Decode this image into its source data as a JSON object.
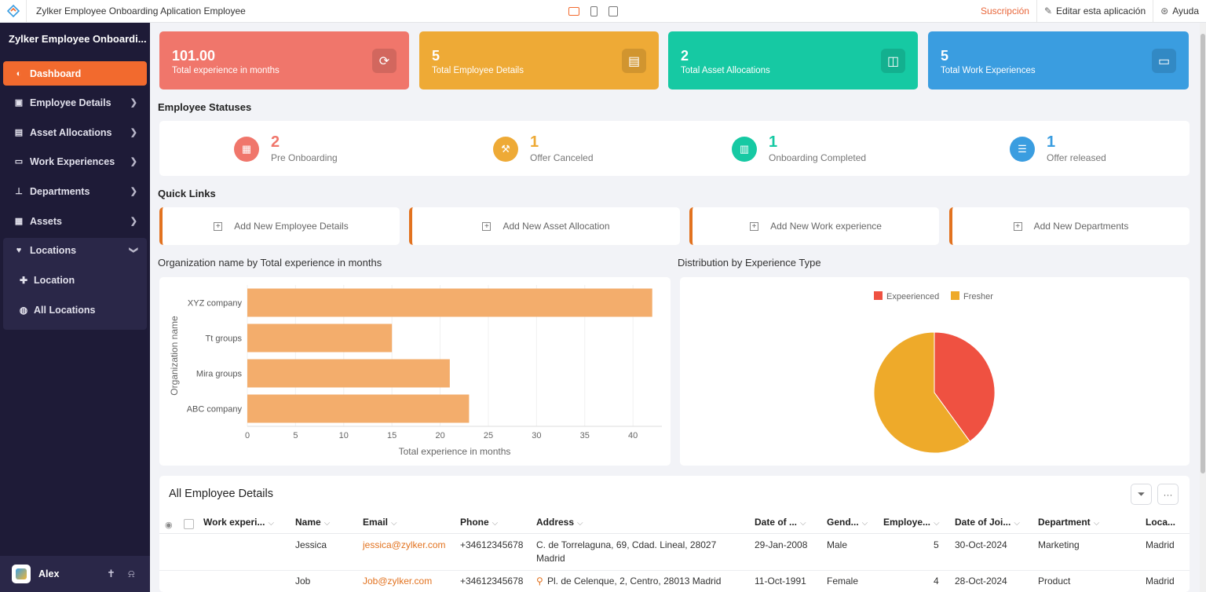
{
  "topbar": {
    "title": "Zylker Employee Onboarding Aplication Employee",
    "subscription": "Suscripción",
    "edit_app": "Editar esta aplicación",
    "help": "Ayuda"
  },
  "sidebar": {
    "title": "Zylker Employee Onboardi...",
    "items": [
      {
        "label": "Dashboard",
        "icon": "dashboard-icon"
      },
      {
        "label": "Employee Details",
        "icon": "employee-icon"
      },
      {
        "label": "Asset Allocations",
        "icon": "asset-allocation-icon"
      },
      {
        "label": "Work Experiences",
        "icon": "laptop-icon"
      },
      {
        "label": "Departments",
        "icon": "org-chart-icon"
      },
      {
        "label": "Assets",
        "icon": "assets-icon"
      },
      {
        "label": "Locations",
        "icon": "location-icon"
      }
    ],
    "subitems": [
      {
        "label": "Location",
        "icon": "plus-icon"
      },
      {
        "label": "All Locations",
        "icon": "globe-icon"
      }
    ],
    "user": "Alex",
    "accent": "#f26a2e"
  },
  "kpis": [
    {
      "value": "101.00",
      "label": "Total experience in months",
      "color": "#f0766b",
      "icon": "refresh-icon"
    },
    {
      "value": "5",
      "label": "Total Employee Details",
      "color": "#eeaa36",
      "icon": "id-card-icon"
    },
    {
      "value": "2",
      "label": "Total Asset Allocations",
      "color": "#16c9a3",
      "icon": "chart-board-icon"
    },
    {
      "value": "5",
      "label": "Total Work Experiences",
      "color": "#3a9de0",
      "icon": "laptop-icon"
    }
  ],
  "statuses": {
    "title": "Employee Statuses",
    "items": [
      {
        "count": "2",
        "label": "Pre Onboarding",
        "color": "#f0766b",
        "icon": "grid-icon"
      },
      {
        "count": "1",
        "label": "Offer Canceled",
        "color": "#eeaa36",
        "icon": "hammer-icon"
      },
      {
        "count": "1",
        "label": "Onboarding Completed",
        "color": "#16c9a3",
        "icon": "clipboard-icon"
      },
      {
        "count": "1",
        "label": "Offer released",
        "color": "#3a9de0",
        "icon": "server-icon"
      }
    ]
  },
  "quick_links": {
    "title": "Quick Links",
    "items": [
      "Add New Employee Details",
      "Add New Asset Allocation",
      "Add New Work experience",
      "Add New Departments"
    ]
  },
  "chart_data": [
    {
      "type": "bar",
      "orientation": "horizontal",
      "title": "Organization name by Total experience in months",
      "categories": [
        "XYZ company",
        "Tt groups",
        "Mira groups",
        "ABC company"
      ],
      "values": [
        42,
        15,
        21,
        23
      ],
      "xlabel": "Total experience in months",
      "ylabel": "Organization name",
      "xlim": [
        0,
        43
      ],
      "xticks": [
        "0",
        "5",
        "10",
        "15",
        "20",
        "25",
        "30",
        "35",
        "40"
      ],
      "color": "#f3ad6c",
      "grid": true
    },
    {
      "type": "pie",
      "title": "Distribution by Experience Type",
      "labels": [
        "Expeerienced",
        "Fresher"
      ],
      "values": [
        2,
        3
      ],
      "colors": [
        "#ef5141",
        "#eeaa2a"
      ],
      "legend": "top-center"
    }
  ],
  "table": {
    "title": "All Employee Details",
    "columns": [
      "Work experi...",
      "Name",
      "Email",
      "Phone",
      "Address",
      "Date of ...",
      "Gend...",
      "Employe...",
      "Date of Joi...",
      "Department",
      "Loca..."
    ],
    "rows": [
      {
        "name": "Jessica",
        "email": "jessica@zylker.com",
        "phone": "+34612345678",
        "address": "C. de Torrelaguna, 69, Cdad. Lineal, 28027",
        "address2": "Madrid",
        "dob": "29-Jan-2008",
        "gender": "Male",
        "employee": "5",
        "doj": "30-Oct-2024",
        "department": "Marketing",
        "location": "Madrid"
      },
      {
        "name": "Job",
        "email": "Job@zylker.com",
        "phone": "+34612345678",
        "address": "Pl. de Celenque, 2, Centro, 28013 Madrid",
        "address2": "",
        "dob": "11-Oct-1991",
        "gender": "Female",
        "employee": "4",
        "doj": "28-Oct-2024",
        "department": "Product",
        "location": "Madrid"
      }
    ]
  }
}
